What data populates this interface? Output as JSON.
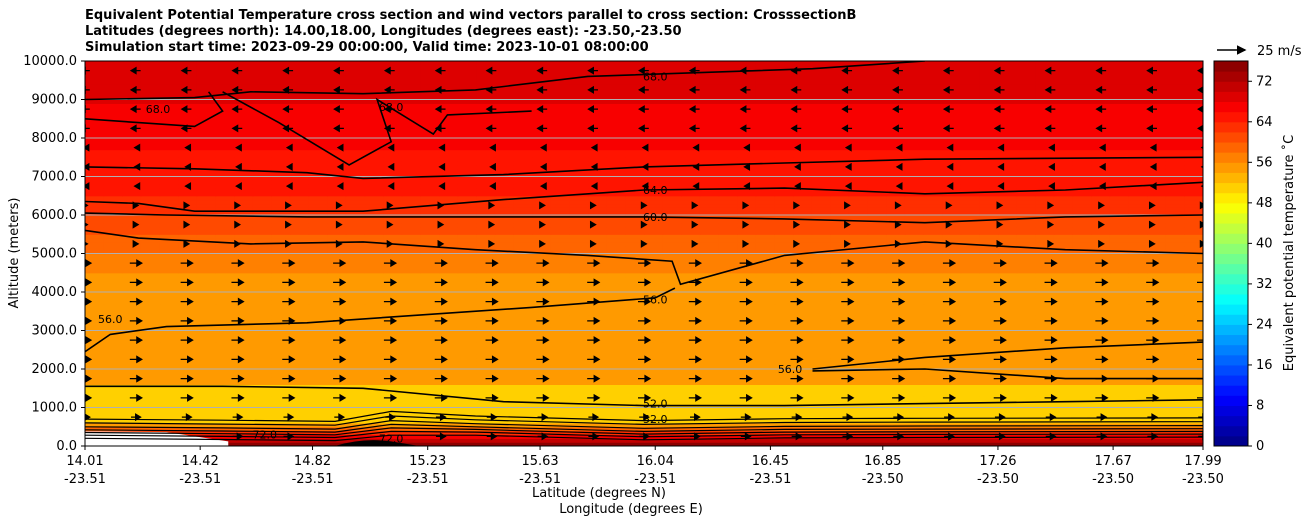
{
  "title_lines": [
    "Equivalent Potential Temperature cross section and wind vectors parallel to cross section: CrosssectionB",
    "Latitudes (degrees north): 14.00,18.00, Longitudes (degrees east): -23.50,-23.50",
    "Simulation start time: 2023-09-29 00:00:00, Valid time: 2023-10-01 08:00:00"
  ],
  "chart_data": {
    "type": "heatmap",
    "subtype": "filled-contour cross section with quiver wind vectors",
    "xlabel": "Latitude (degrees N)",
    "xlabel2": "Longitude (degrees E)",
    "ylabel": "Altitude (meters)",
    "ylim": [
      0,
      10000
    ],
    "y_ticks": [
      "0.0",
      "1000.0",
      "2000.0",
      "3000.0",
      "4000.0",
      "5000.0",
      "6000.0",
      "7000.0",
      "8000.0",
      "9000.0",
      "10000.0"
    ],
    "x_ticks": [
      {
        "lat": "14.01",
        "lon": "-23.51"
      },
      {
        "lat": "14.42",
        "lon": "-23.51"
      },
      {
        "lat": "14.82",
        "lon": "-23.51"
      },
      {
        "lat": "15.23",
        "lon": "-23.51"
      },
      {
        "lat": "15.63",
        "lon": "-23.51"
      },
      {
        "lat": "16.04",
        "lon": "-23.51"
      },
      {
        "lat": "16.45",
        "lon": "-23.51"
      },
      {
        "lat": "16.85",
        "lon": "-23.50"
      },
      {
        "lat": "17.26",
        "lon": "-23.50"
      },
      {
        "lat": "17.67",
        "lon": "-23.50"
      },
      {
        "lat": "17.99",
        "lon": "-23.50"
      }
    ],
    "grid": "horizontal",
    "colorbar": {
      "label": "Equivalent potential temperature $^\\circ$C",
      "label_text": "Equivalent potential temperature ˚C",
      "min": 0,
      "max": 76,
      "step": 2,
      "ticks": [
        "0",
        "8",
        "16",
        "24",
        "32",
        "40",
        "48",
        "56",
        "64",
        "72"
      ],
      "colormap": "jet"
    },
    "quiver_key": {
      "label": "25 m/s",
      "value": 25
    },
    "contour_labels": [
      {
        "text": "68.0",
        "x": 16.04,
        "y": 9600
      },
      {
        "text": "68.0",
        "x": 14.27,
        "y": 8750
      },
      {
        "text": "68.0",
        "x": 15.1,
        "y": 8800
      },
      {
        "text": "64.0",
        "x": 16.04,
        "y": 6650
      },
      {
        "text": "60.0",
        "x": 16.04,
        "y": 5950
      },
      {
        "text": "56.0",
        "x": 16.04,
        "y": 3800
      },
      {
        "text": "56.0",
        "x": 14.1,
        "y": 3300
      },
      {
        "text": "56.0",
        "x": 16.52,
        "y": 2000
      },
      {
        "text": "52.0",
        "x": 16.04,
        "y": 1100
      },
      {
        "text": "52.0",
        "x": 16.04,
        "y": 700
      },
      {
        "text": "72.0",
        "x": 14.65,
        "y": 300
      },
      {
        "text": "72.0",
        "x": 15.1,
        "y": 200
      }
    ],
    "contour_levels": [
      52,
      56,
      60,
      64,
      68,
      72,
      76
    ]
  }
}
